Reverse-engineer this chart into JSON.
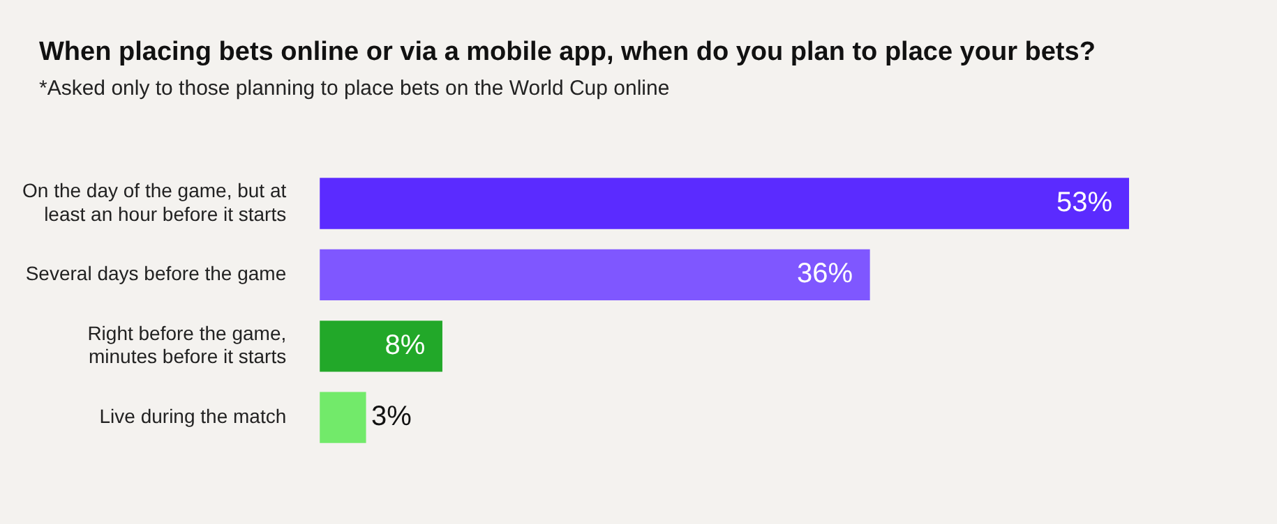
{
  "chart_data": {
    "type": "bar",
    "orientation": "horizontal",
    "title": "When placing bets online or via a mobile app, when do you plan to place your bets?",
    "subtitle": "*Asked only to those planning to place bets on the World Cup online",
    "categories": [
      "On the day of the game, but at least an hour before it starts",
      "Several days before the game",
      "Right before the game, minutes before it starts",
      "Live during the match"
    ],
    "values": [
      53,
      36,
      8,
      3
    ],
    "colors": [
      "#5b2bff",
      "#7f57ff",
      "#22a829",
      "#72ea6a"
    ],
    "value_labels": [
      "53%",
      "36%",
      "8%",
      "3%"
    ],
    "legend": false
  }
}
